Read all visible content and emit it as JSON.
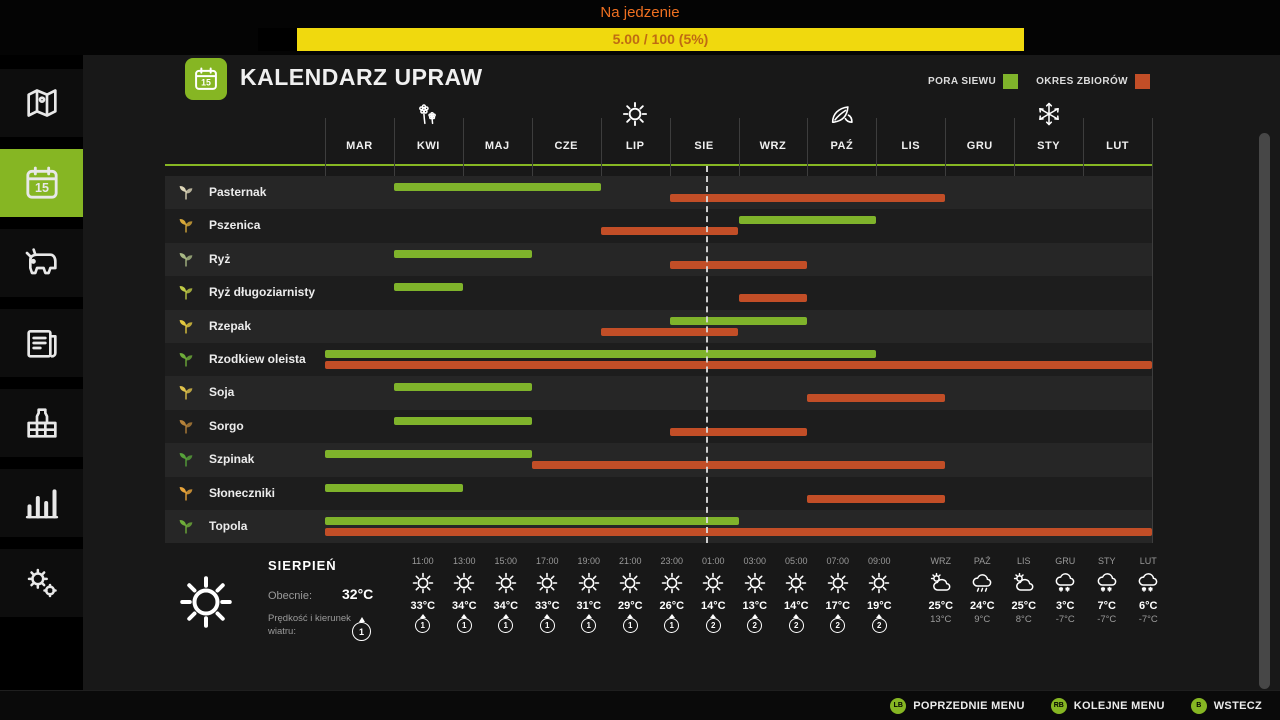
{
  "colors": {
    "sow": "#7fb32b",
    "harvest": "#c24e27",
    "accent": "#86b623",
    "progress_fill": "#f0d90e",
    "progress_text": "#bf6b12",
    "title_orange": "#ef7021"
  },
  "top": {
    "label": "Na jedzenie",
    "progress_text": "5.00 / 100 (5%)"
  },
  "sidebar": {
    "items": [
      {
        "id": "map",
        "active": false
      },
      {
        "id": "calendar",
        "active": true
      },
      {
        "id": "animals",
        "active": false
      },
      {
        "id": "contracts",
        "active": false
      },
      {
        "id": "production",
        "active": false
      },
      {
        "id": "statistics",
        "active": false
      },
      {
        "id": "mods",
        "active": false
      }
    ]
  },
  "header": {
    "title": "KALENDARZ UPRAW",
    "legend": [
      {
        "label": "PORA SIEWU",
        "type": "sow"
      },
      {
        "label": "OKRES ZBIORÓW",
        "type": "harvest"
      }
    ]
  },
  "calendar": {
    "months": [
      "MAR",
      "KWI",
      "MAJ",
      "CZE",
      "LIP",
      "SIE",
      "WRZ",
      "PAŹ",
      "LIS",
      "GRU",
      "STY",
      "LUT"
    ],
    "seasons": [
      {
        "name": "spring",
        "month": 1
      },
      {
        "name": "summer",
        "month": 4
      },
      {
        "name": "autumn",
        "month": 7
      },
      {
        "name": "winter",
        "month": 10
      }
    ],
    "current_month_marker": 5.53,
    "crops": [
      {
        "name": "Pasternak",
        "icon_color": "#ddd6b8",
        "sow": [
          [
            1,
            4
          ]
        ],
        "harvest": [
          [
            5,
            9
          ]
        ]
      },
      {
        "name": "Pszenica",
        "icon_color": "#d8a93a",
        "sow": [
          [
            6,
            8
          ]
        ],
        "harvest": [
          [
            4,
            6
          ]
        ]
      },
      {
        "name": "Ryż",
        "icon_color": "#a9b985",
        "sow": [
          [
            1,
            3
          ]
        ],
        "harvest": [
          [
            5,
            7
          ]
        ]
      },
      {
        "name": "Ryż długoziarnisty",
        "icon_color": "#c0ca45",
        "sow": [
          [
            1,
            2
          ]
        ],
        "harvest": [
          [
            6,
            7
          ]
        ]
      },
      {
        "name": "Rzepak",
        "icon_color": "#e3c93f",
        "sow": [
          [
            5,
            7
          ]
        ],
        "harvest": [
          [
            4,
            6
          ]
        ]
      },
      {
        "name": "Rzodkiew oleista",
        "icon_color": "#6fae3a",
        "sow": [
          [
            0,
            8
          ]
        ],
        "harvest": [
          [
            0,
            12
          ]
        ]
      },
      {
        "name": "Soja",
        "icon_color": "#e0c24a",
        "sow": [
          [
            1,
            3
          ]
        ],
        "harvest": [
          [
            7,
            9
          ]
        ]
      },
      {
        "name": "Sorgo",
        "icon_color": "#b5823a",
        "sow": [
          [
            1,
            3
          ]
        ],
        "harvest": [
          [
            5,
            7
          ]
        ]
      },
      {
        "name": "Szpinak",
        "icon_color": "#57a33a",
        "sow": [
          [
            0,
            3
          ]
        ],
        "harvest": [
          [
            3,
            9
          ]
        ]
      },
      {
        "name": "Słoneczniki",
        "icon_color": "#e8a43a",
        "sow": [
          [
            0,
            2
          ]
        ],
        "harvest": [
          [
            7,
            9
          ]
        ]
      },
      {
        "name": "Topola",
        "icon_color": "#6fae3a",
        "sow": [
          [
            0,
            6
          ]
        ],
        "harvest": [
          [
            0,
            12
          ]
        ]
      }
    ]
  },
  "weather": {
    "month": "SIERPIEŃ",
    "current_label": "Obecnie:",
    "current_temp": "32°C",
    "current_icon": "sun",
    "wind_label": "Prędkość i kierunek wiatru:",
    "wind_value": "1",
    "hourly": [
      {
        "time": "11:00",
        "temp": "33°C",
        "wind": "1",
        "icon": "sun"
      },
      {
        "time": "13:00",
        "temp": "34°C",
        "wind": "1",
        "icon": "sun"
      },
      {
        "time": "15:00",
        "temp": "34°C",
        "wind": "1",
        "icon": "sun"
      },
      {
        "time": "17:00",
        "temp": "33°C",
        "wind": "1",
        "icon": "sun"
      },
      {
        "time": "19:00",
        "temp": "31°C",
        "wind": "1",
        "icon": "sun"
      },
      {
        "time": "21:00",
        "temp": "29°C",
        "wind": "1",
        "icon": "sun"
      },
      {
        "time": "23:00",
        "temp": "26°C",
        "wind": "1",
        "icon": "sun"
      },
      {
        "time": "01:00",
        "temp": "14°C",
        "wind": "2",
        "icon": "sun"
      },
      {
        "time": "03:00",
        "temp": "13°C",
        "wind": "2",
        "icon": "sun"
      },
      {
        "time": "05:00",
        "temp": "14°C",
        "wind": "2",
        "icon": "sun"
      },
      {
        "time": "07:00",
        "temp": "17°C",
        "wind": "2",
        "icon": "sun"
      },
      {
        "time": "09:00",
        "temp": "19°C",
        "wind": "2",
        "icon": "sun"
      }
    ],
    "monthly": [
      {
        "month": "WRZ",
        "high": "25°C",
        "low": "13°C",
        "icon": "sun-cloud"
      },
      {
        "month": "PAŹ",
        "high": "24°C",
        "low": "9°C",
        "icon": "rain-cloud"
      },
      {
        "month": "LIS",
        "high": "25°C",
        "low": "8°C",
        "icon": "sun-cloud"
      },
      {
        "month": "GRU",
        "high": "3°C",
        "low": "-7°C",
        "icon": "snow-cloud"
      },
      {
        "month": "STY",
        "high": "7°C",
        "low": "-7°C",
        "icon": "snow-cloud"
      },
      {
        "month": "LUT",
        "high": "6°C",
        "low": "-7°C",
        "icon": "snow-cloud"
      }
    ]
  },
  "bottom_bar": {
    "items": [
      {
        "key": "LB",
        "label": "POPRZEDNIE MENU"
      },
      {
        "key": "RB",
        "label": "KOLEJNE MENU"
      },
      {
        "key": "B",
        "label": "WSTECZ"
      }
    ]
  }
}
